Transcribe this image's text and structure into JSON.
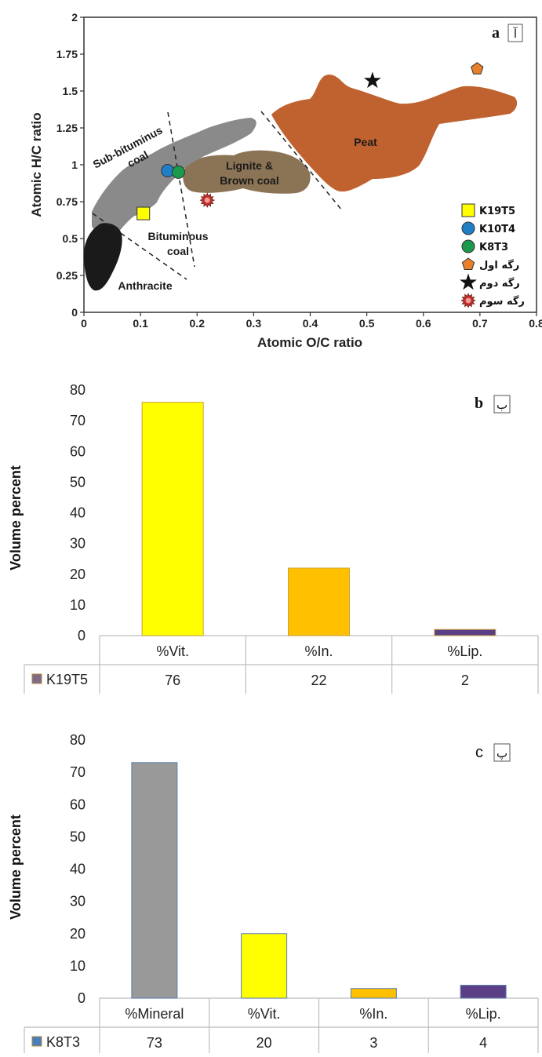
{
  "chart_data": [
    {
      "id": "a",
      "type": "scatter",
      "panel_letter": "a",
      "panel_mark": "آ",
      "xlabel": "Atomic O/C ratio",
      "ylabel": "Atomic H/C ratio",
      "xlim": [
        0,
        0.8
      ],
      "ylim": [
        0,
        2
      ],
      "xticks": [
        "0",
        "0.1",
        "0.2",
        "0.3",
        "0.4",
        "0.5",
        "0.6",
        "0.7",
        "0.8"
      ],
      "yticks": [
        "0",
        "0.25",
        "0.5",
        "0.75",
        "1",
        "1.25",
        "1.5",
        "1.75",
        "2"
      ],
      "regions": [
        {
          "name": "Peat",
          "color": "#c0622f"
        },
        {
          "name": "Lignite & Brown coal",
          "line1": "Lignite &",
          "line2": "Brown coal",
          "color": "#8b7355"
        },
        {
          "name": "Sub-bituminus coal",
          "line1": "Sub-bituminus",
          "line2": "coal",
          "color": "#8a8a8a"
        },
        {
          "name": "Bituminous coal",
          "line1": "Bituminous",
          "line2": "coal",
          "color": "#8a8a8a"
        },
        {
          "name": "Anthracite",
          "color": "#1a1a1a"
        }
      ],
      "series": [
        {
          "name": "K19T5",
          "marker": "square",
          "color": "#ffff00",
          "x": 0.105,
          "y": 0.67
        },
        {
          "name": "K10T4",
          "marker": "circle",
          "color": "#1f7fc4",
          "x": 0.148,
          "y": 0.96
        },
        {
          "name": "K8T3",
          "marker": "circle",
          "color": "#1a9a4a",
          "x": 0.167,
          "y": 0.95
        },
        {
          "name": "رگه اول",
          "marker": "pentagon",
          "color": "#e8802a",
          "x": 0.695,
          "y": 1.65
        },
        {
          "name": "رگه دوم",
          "marker": "star",
          "color": "#111111",
          "x": 0.51,
          "y": 1.57
        },
        {
          "name": "رگه سوم",
          "marker": "burst",
          "color": "#c8302a",
          "x": 0.218,
          "y": 0.76
        }
      ]
    },
    {
      "id": "b",
      "type": "bar",
      "panel_letter": "b",
      "panel_mark": "ب",
      "ylabel": "Volume percent",
      "ylim": [
        0,
        80
      ],
      "yticks": [
        "0",
        "10",
        "20",
        "30",
        "40",
        "50",
        "60",
        "70",
        "80"
      ],
      "categories": [
        "%Vit.",
        "%In.",
        "%Lip."
      ],
      "colors": [
        "#ffff00",
        "#ffc000",
        "#5b3f86"
      ],
      "series": [
        {
          "name": "K19T5",
          "values": [
            76,
            22,
            2
          ],
          "legend_color": "#7f6a8a"
        }
      ],
      "value_labels": [
        "76",
        "22",
        "2"
      ]
    },
    {
      "id": "c",
      "type": "bar",
      "panel_letter": "c",
      "panel_mark": "پ",
      "ylabel": "Volume percent",
      "ylim": [
        0,
        80
      ],
      "yticks": [
        "0",
        "10",
        "20",
        "30",
        "40",
        "50",
        "60",
        "70",
        "80"
      ],
      "categories": [
        "%Mineral",
        "%Vit.",
        "%In.",
        "%Lip."
      ],
      "colors": [
        "#999999",
        "#ffff00",
        "#ffc000",
        "#5b3f86"
      ],
      "series": [
        {
          "name": "K8T3",
          "values": [
            73,
            20,
            3,
            4
          ],
          "legend_color": "#4a7ebb"
        }
      ],
      "value_labels": [
        "73",
        "20",
        "3",
        "4"
      ]
    }
  ]
}
